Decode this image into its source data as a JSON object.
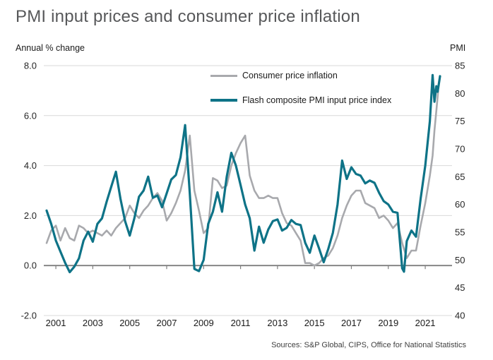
{
  "title": "PMI input prices and consumer price inflation",
  "source": "Sources: S&P Global, CIPS, Office for National Statistics",
  "left_axis": {
    "label": "Annual % change",
    "tick_labels": [
      "8.0",
      "6.0",
      "4.0",
      "2.0",
      "0.0",
      "-2.0"
    ],
    "tick_values": [
      8,
      6,
      4,
      2,
      0,
      -2
    ],
    "gridline_values": [
      8,
      6,
      4,
      2,
      -2
    ],
    "zero_line_value": 0
  },
  "right_axis": {
    "label": "PMI",
    "tick_labels": [
      "85",
      "80",
      "75",
      "70",
      "65",
      "60",
      "55",
      "50",
      "45",
      "40"
    ],
    "tick_values": [
      85,
      80,
      75,
      70,
      65,
      60,
      55,
      50,
      45,
      40
    ]
  },
  "x_axis": {
    "tick_years": [
      2001,
      2003,
      2005,
      2007,
      2009,
      2011,
      2013,
      2015,
      2017,
      2019,
      2021
    ]
  },
  "chart_data": {
    "type": "line",
    "title": "PMI input prices and consumer price inflation",
    "x_unit": "year (monthly series, Jan 2001 - Apr 2022)",
    "left_ylim": [
      -2,
      8
    ],
    "right_ylim": [
      40,
      85
    ],
    "x_range": [
      2001,
      2022.5
    ],
    "grid": "horizontal-only",
    "legend_position": "top-center",
    "series": [
      {
        "name": "Consumer price inflation",
        "axis": "left",
        "unit": "annual % change",
        "color": "#a8a9ad",
        "stroke_width": 2.6,
        "points": [
          [
            2001.0,
            0.9
          ],
          [
            2001.25,
            1.4
          ],
          [
            2001.5,
            1.6
          ],
          [
            2001.75,
            1.0
          ],
          [
            2002.0,
            1.5
          ],
          [
            2002.25,
            1.1
          ],
          [
            2002.5,
            1.0
          ],
          [
            2002.75,
            1.6
          ],
          [
            2003.0,
            1.5
          ],
          [
            2003.25,
            1.3
          ],
          [
            2003.5,
            1.4
          ],
          [
            2003.75,
            1.3
          ],
          [
            2004.0,
            1.2
          ],
          [
            2004.25,
            1.4
          ],
          [
            2004.5,
            1.2
          ],
          [
            2004.75,
            1.5
          ],
          [
            2005.0,
            1.7
          ],
          [
            2005.25,
            1.9
          ],
          [
            2005.5,
            2.4
          ],
          [
            2005.75,
            2.1
          ],
          [
            2006.0,
            1.9
          ],
          [
            2006.25,
            2.2
          ],
          [
            2006.5,
            2.4
          ],
          [
            2006.75,
            2.7
          ],
          [
            2007.0,
            2.9
          ],
          [
            2007.25,
            2.6
          ],
          [
            2007.5,
            1.8
          ],
          [
            2007.75,
            2.1
          ],
          [
            2008.0,
            2.5
          ],
          [
            2008.25,
            3.0
          ],
          [
            2008.5,
            3.8
          ],
          [
            2008.75,
            5.2
          ],
          [
            2009.0,
            3.0
          ],
          [
            2009.25,
            2.2
          ],
          [
            2009.5,
            1.3
          ],
          [
            2009.75,
            1.5
          ],
          [
            2010.0,
            3.5
          ],
          [
            2010.25,
            3.4
          ],
          [
            2010.5,
            3.1
          ],
          [
            2010.75,
            3.2
          ],
          [
            2011.0,
            4.0
          ],
          [
            2011.25,
            4.5
          ],
          [
            2011.5,
            4.9
          ],
          [
            2011.75,
            5.2
          ],
          [
            2012.0,
            3.6
          ],
          [
            2012.25,
            3.0
          ],
          [
            2012.5,
            2.7
          ],
          [
            2012.75,
            2.7
          ],
          [
            2013.0,
            2.8
          ],
          [
            2013.25,
            2.7
          ],
          [
            2013.5,
            2.7
          ],
          [
            2013.75,
            2.1
          ],
          [
            2014.0,
            1.7
          ],
          [
            2014.25,
            1.6
          ],
          [
            2014.5,
            1.3
          ],
          [
            2014.75,
            1.0
          ],
          [
            2015.0,
            0.1
          ],
          [
            2015.25,
            0.1
          ],
          [
            2015.5,
            0.0
          ],
          [
            2015.75,
            0.1
          ],
          [
            2016.0,
            0.3
          ],
          [
            2016.25,
            0.4
          ],
          [
            2016.5,
            0.7
          ],
          [
            2016.75,
            1.2
          ],
          [
            2017.0,
            1.9
          ],
          [
            2017.25,
            2.4
          ],
          [
            2017.5,
            2.8
          ],
          [
            2017.75,
            3.0
          ],
          [
            2018.0,
            3.0
          ],
          [
            2018.25,
            2.5
          ],
          [
            2018.5,
            2.4
          ],
          [
            2018.75,
            2.3
          ],
          [
            2019.0,
            1.9
          ],
          [
            2019.25,
            2.0
          ],
          [
            2019.5,
            1.8
          ],
          [
            2019.75,
            1.5
          ],
          [
            2020.0,
            1.7
          ],
          [
            2020.25,
            0.9
          ],
          [
            2020.5,
            0.3
          ],
          [
            2020.75,
            0.6
          ],
          [
            2021.0,
            0.6
          ],
          [
            2021.25,
            1.6
          ],
          [
            2021.5,
            2.5
          ],
          [
            2021.75,
            3.6
          ],
          [
            2021.9,
            4.4
          ],
          [
            2022.0,
            5.4
          ],
          [
            2022.1,
            6.2
          ],
          [
            2022.2,
            7.0
          ]
        ]
      },
      {
        "name": "Flash composite PMI input price index",
        "axis": "right",
        "unit": "index, 50 = no change",
        "color": "#0e7387",
        "stroke_width": 3.2,
        "points": [
          [
            2001.0,
            58.9
          ],
          [
            2001.25,
            56.5
          ],
          [
            2001.5,
            53.5
          ],
          [
            2001.75,
            51.5
          ],
          [
            2002.0,
            49.5
          ],
          [
            2002.25,
            47.8
          ],
          [
            2002.5,
            48.8
          ],
          [
            2002.75,
            50.3
          ],
          [
            2003.0,
            53.5
          ],
          [
            2003.25,
            55.1
          ],
          [
            2003.5,
            53.3
          ],
          [
            2003.75,
            56.5
          ],
          [
            2004.0,
            57.5
          ],
          [
            2004.25,
            60.5
          ],
          [
            2004.5,
            63.2
          ],
          [
            2004.75,
            65.9
          ],
          [
            2005.0,
            61.0
          ],
          [
            2005.25,
            57.0
          ],
          [
            2005.5,
            54.4
          ],
          [
            2005.75,
            57.5
          ],
          [
            2006.0,
            61.4
          ],
          [
            2006.25,
            62.5
          ],
          [
            2006.5,
            65.0
          ],
          [
            2006.75,
            61.2
          ],
          [
            2007.0,
            61.6
          ],
          [
            2007.25,
            59.5
          ],
          [
            2007.5,
            62.0
          ],
          [
            2007.75,
            64.5
          ],
          [
            2008.0,
            65.3
          ],
          [
            2008.25,
            68.5
          ],
          [
            2008.5,
            74.3
          ],
          [
            2008.75,
            62.0
          ],
          [
            2009.0,
            48.4
          ],
          [
            2009.25,
            48.0
          ],
          [
            2009.5,
            50.0
          ],
          [
            2009.75,
            56.5
          ],
          [
            2010.0,
            58.7
          ],
          [
            2010.25,
            62.2
          ],
          [
            2010.5,
            58.7
          ],
          [
            2010.75,
            65.0
          ],
          [
            2011.0,
            69.3
          ],
          [
            2011.25,
            67.0
          ],
          [
            2011.5,
            63.5
          ],
          [
            2011.75,
            60.0
          ],
          [
            2012.0,
            57.5
          ],
          [
            2012.25,
            51.7
          ],
          [
            2012.5,
            56.0
          ],
          [
            2012.75,
            53.1
          ],
          [
            2013.0,
            55.5
          ],
          [
            2013.25,
            57.0
          ],
          [
            2013.5,
            57.3
          ],
          [
            2013.75,
            55.3
          ],
          [
            2014.0,
            55.8
          ],
          [
            2014.25,
            57.2
          ],
          [
            2014.5,
            56.5
          ],
          [
            2014.75,
            56.3
          ],
          [
            2015.0,
            53.1
          ],
          [
            2015.25,
            51.3
          ],
          [
            2015.5,
            54.4
          ],
          [
            2015.75,
            52.1
          ],
          [
            2016.0,
            49.6
          ],
          [
            2016.25,
            52.0
          ],
          [
            2016.5,
            54.9
          ],
          [
            2016.75,
            60.0
          ],
          [
            2017.0,
            67.9
          ],
          [
            2017.25,
            64.6
          ],
          [
            2017.5,
            66.7
          ],
          [
            2017.75,
            65.5
          ],
          [
            2018.0,
            65.2
          ],
          [
            2018.25,
            63.8
          ],
          [
            2018.5,
            64.3
          ],
          [
            2018.75,
            63.9
          ],
          [
            2019.0,
            62.1
          ],
          [
            2019.25,
            60.6
          ],
          [
            2019.5,
            60.0
          ],
          [
            2019.75,
            58.7
          ],
          [
            2020.0,
            58.5
          ],
          [
            2020.25,
            48.5
          ],
          [
            2020.35,
            47.9
          ],
          [
            2020.5,
            53.4
          ],
          [
            2020.75,
            55.3
          ],
          [
            2021.0,
            54.2
          ],
          [
            2021.25,
            61.0
          ],
          [
            2021.5,
            67.0
          ],
          [
            2021.75,
            75.0
          ],
          [
            2021.9,
            83.3
          ],
          [
            2022.0,
            78.5
          ],
          [
            2022.1,
            81.3
          ],
          [
            2022.17,
            80.3
          ],
          [
            2022.3,
            83.1
          ]
        ]
      }
    ]
  }
}
